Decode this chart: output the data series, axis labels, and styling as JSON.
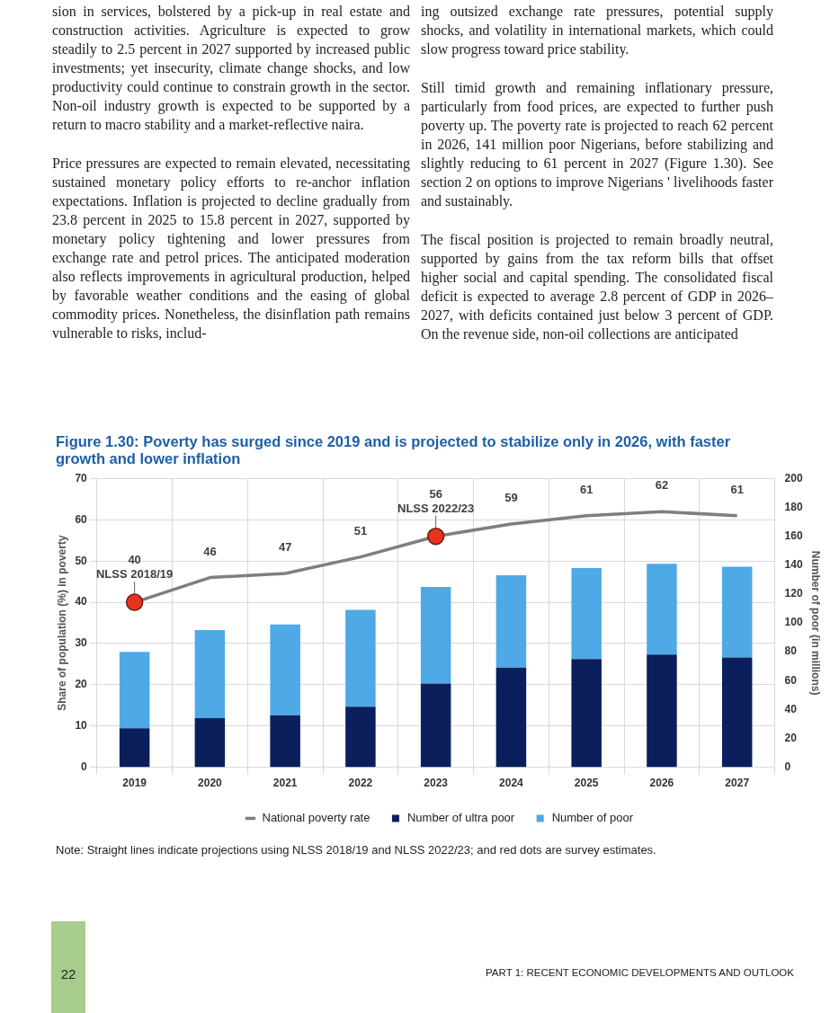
{
  "chart_data": {
    "type": "bar",
    "title": "Figure 1.30: Poverty has surged since 2019 and is projected to stabilize only in 2026, with faster growth and lower inflation",
    "categories": [
      "2019",
      "2020",
      "2021",
      "2022",
      "2023",
      "2024",
      "2025",
      "2026",
      "2027"
    ],
    "series": [
      {
        "name": "Number of ultra poor",
        "color": "#0b1f5c",
        "values": [
          27,
          34,
          36,
          42,
          58,
          69,
          75,
          78,
          76
        ],
        "axis": "y2"
      },
      {
        "name": "Number of poor",
        "color": "#4fa9e6",
        "values": [
          53,
          61,
          63,
          67,
          67,
          64,
          63,
          63,
          63
        ],
        "axis": "y2"
      },
      {
        "name": "National poverty rate",
        "type": "line",
        "color": "#7f7f7f",
        "marker": "none",
        "values": [
          40,
          46,
          47,
          51,
          56,
          59,
          61,
          62,
          61
        ],
        "value_labels": [
          "40",
          "46",
          "47",
          "51",
          "56",
          "59",
          "61",
          "62",
          "61"
        ]
      },
      {
        "type": "scatter",
        "color": "#e8321e",
        "marker": "circle",
        "values": [
          40,
          null,
          null,
          null,
          56,
          null,
          null,
          null,
          null
        ]
      }
    ],
    "stacked": true,
    "ylabel": "Share of population (%) in poverty",
    "y2label": "Number of poor (in millions)",
    "ylim": [
      0,
      70
    ],
    "yticks": [
      0,
      10,
      20,
      30,
      40,
      50,
      60,
      70
    ],
    "y2lim": [
      0,
      200
    ],
    "y2ticks": [
      0,
      20,
      40,
      60,
      80,
      100,
      120,
      140,
      160,
      180,
      200
    ],
    "grid": true,
    "legend": "bottom",
    "annotations": [
      "sion in services, bolstered by a pick-up in real estate and construction activities. Agriculture is expected to grow steadily to 2.5 percent in 2027 supported by increased public investments; yet insecurity, climate change shocks, and low productivity could continue to constrain growth in the sector. Non-oil industry growth is expected to be supported by a return to macro stability and a market-reflective naira.",
      "Price pressures are expected to remain elevated, necessitating sustained monetary policy efforts to re-anchor inflation expectations. Inflation is projected to decline gradually from 23.8 percent in 2025 to 15.8 percent in 2027, supported by monetary policy tightening and lower pressures from exchange rate and petrol prices. The anticipated moderation also reflects improvements in agricultural production, helped by favorable weather conditions and the easing of global commodity prices. Nonetheless, the disinflation path remains vulnerable to risks, includ-",
      "ing outsized exchange rate pressures, potential supply shocks, and volatility in international markets, which could slow progress toward price stability.",
      "Still timid growth and remaining inflationary pressure, particularly from food prices, are expected to further push poverty up. The poverty rate is projected to reach 62 percent in 2026, 141 million poor Nigerians, before stabilizing and slightly reducing to 61 percent in 2027 (Figure 1.30). See section 2 on options to improve Nigerians ' livelihoods faster and sustainably.",
      "The fiscal position is projected to remain broadly neutral, supported by gains from the tax reform bills that offset higher social and capital spending. The consolidated fiscal deficit is expected to average 2.8 percent of GDP in 2026–2027, with deficits contained just below 3 percent of GDP. On the revenue side, non-oil collections are anticipated",
      "Note: Straight lines indicate projections using NLSS 2018/19 and NLSS 2022/23; and red dots are survey estimates.",
      "22",
      "PART 1: RECENT ECONOMIC DEVELOPMENTS AND OUTLOOK",
      {
        "text": "NLSS 2018/19",
        "x": "2019",
        "y": 40
      },
      {
        "text": "NLSS 2022/23",
        "x": "2023",
        "y": 56
      }
    ]
  }
}
